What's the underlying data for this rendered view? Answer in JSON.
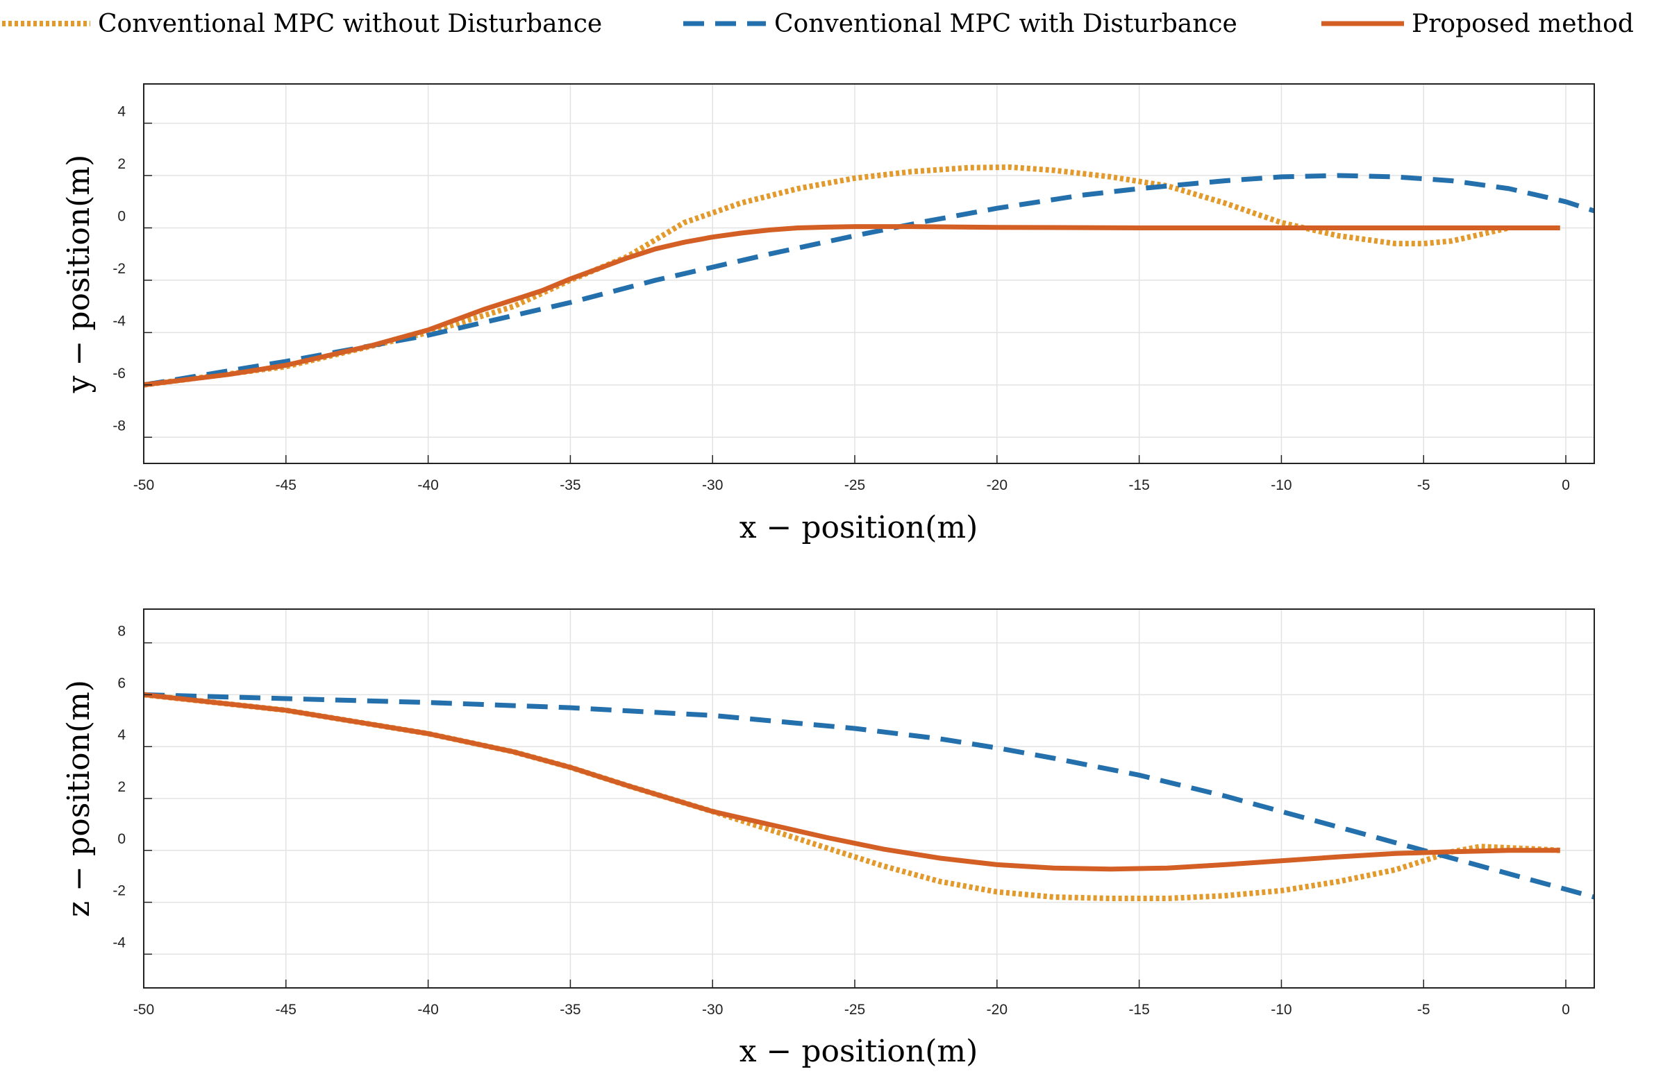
{
  "legend": {
    "entries": [
      {
        "label": "Conventional MPC without Disturbance",
        "color": "#E39A2D",
        "style": "dotted"
      },
      {
        "label": "Conventional MPC with Disturbance",
        "color": "#2370AD",
        "style": "dashed"
      },
      {
        "label": "Proposed method",
        "color": "#D35F25",
        "style": "solid"
      }
    ]
  },
  "chart_data": [
    {
      "type": "line",
      "xlabel": "x − position(m)",
      "ylabel": "y − position(m)",
      "xlim": [
        -50,
        1
      ],
      "ylim": [
        -9,
        5.5
      ],
      "xticks": [
        -50,
        -45,
        -40,
        -35,
        -30,
        -25,
        -20,
        -15,
        -10,
        -5,
        0
      ],
      "yticks": [
        -8,
        -6,
        -4,
        -2,
        0,
        2,
        4
      ],
      "grid": true,
      "series": [
        {
          "name": "Conventional MPC without Disturbance",
          "x": [
            -50,
            -45,
            -40,
            -37,
            -35,
            -33,
            -31,
            -29,
            -27,
            -25,
            -23,
            -21,
            -19.5,
            -18,
            -16,
            -14,
            -12,
            -10,
            -8,
            -6,
            -5,
            -4,
            -3,
            -2
          ],
          "y": [
            -6,
            -5.3,
            -4,
            -3,
            -2,
            -1.1,
            0.2,
            0.95,
            1.5,
            1.9,
            2.15,
            2.3,
            2.32,
            2.2,
            1.95,
            1.6,
            0.95,
            0.2,
            -0.3,
            -0.6,
            -0.6,
            -0.5,
            -0.25,
            0
          ]
        },
        {
          "name": "Conventional MPC with Disturbance",
          "x": [
            -50,
            -45,
            -42,
            -40,
            -38,
            -35,
            -32,
            -30,
            -28,
            -25,
            -22.5,
            -20,
            -17,
            -15,
            -12,
            -10,
            -8,
            -6,
            -4,
            -2,
            0,
            1
          ],
          "y": [
            -6,
            -5.1,
            -4.5,
            -4.1,
            -3.6,
            -2.85,
            -2,
            -1.5,
            -1,
            -0.3,
            0.25,
            0.75,
            1.25,
            1.5,
            1.8,
            1.95,
            2.0,
            1.95,
            1.8,
            1.5,
            1.0,
            0.65
          ]
        },
        {
          "name": "Proposed method",
          "x": [
            -50,
            -47,
            -45,
            -42,
            -40,
            -38,
            -36,
            -35,
            -34,
            -33,
            -32,
            -31,
            -30,
            -29,
            -28,
            -27,
            -26,
            -25,
            -23,
            -20,
            -15,
            -10,
            -5,
            -0.2
          ],
          "y": [
            -6,
            -5.6,
            -5.25,
            -4.5,
            -3.9,
            -3.1,
            -2.4,
            -1.95,
            -1.55,
            -1.15,
            -0.8,
            -0.55,
            -0.35,
            -0.2,
            -0.08,
            0,
            0.03,
            0.05,
            0.05,
            0.02,
            0,
            0,
            0,
            0
          ]
        }
      ]
    },
    {
      "type": "line",
      "xlabel": "x − position(m)",
      "ylabel": "z − position(m)",
      "xlim": [
        -50,
        1
      ],
      "ylim": [
        -5.3,
        9.3
      ],
      "xticks": [
        -50,
        -45,
        -40,
        -35,
        -30,
        -25,
        -20,
        -15,
        -10,
        -5,
        0
      ],
      "yticks": [
        -4,
        -2,
        0,
        2,
        4,
        6,
        8
      ],
      "grid": true,
      "series": [
        {
          "name": "Conventional MPC without Disturbance",
          "x": [
            -50,
            -45,
            -40,
            -37,
            -35,
            -33,
            -30,
            -28,
            -26,
            -24,
            -22,
            -20,
            -18,
            -16,
            -14,
            -12,
            -10,
            -8,
            -6,
            -5,
            -4,
            -3,
            -2,
            -1,
            -0.2
          ],
          "y": [
            6,
            5.4,
            4.5,
            3.8,
            3.2,
            2.5,
            1.5,
            0.8,
            0.1,
            -0.6,
            -1.2,
            -1.6,
            -1.8,
            -1.85,
            -1.85,
            -1.75,
            -1.55,
            -1.2,
            -0.75,
            -0.4,
            -0.05,
            0.15,
            0.1,
            0.05,
            0
          ]
        },
        {
          "name": "Conventional MPC with Disturbance",
          "x": [
            -50,
            -45,
            -40,
            -35,
            -30,
            -25,
            -22,
            -20,
            -18,
            -15,
            -12,
            -10,
            -8,
            -6,
            -4,
            -2,
            0,
            1
          ],
          "y": [
            6,
            5.85,
            5.7,
            5.5,
            5.2,
            4.7,
            4.3,
            3.95,
            3.55,
            2.9,
            2.1,
            1.5,
            0.9,
            0.3,
            -0.3,
            -0.9,
            -1.5,
            -1.8
          ]
        },
        {
          "name": "Proposed method",
          "x": [
            -50,
            -45,
            -40,
            -37,
            -35,
            -33,
            -30,
            -28,
            -26,
            -24,
            -22,
            -20,
            -18,
            -16,
            -14,
            -12,
            -10,
            -8,
            -6,
            -4,
            -2,
            -0.2
          ],
          "y": [
            6,
            5.4,
            4.5,
            3.8,
            3.2,
            2.5,
            1.5,
            1.0,
            0.5,
            0.05,
            -0.3,
            -0.55,
            -0.68,
            -0.72,
            -0.68,
            -0.55,
            -0.4,
            -0.25,
            -0.12,
            -0.05,
            0,
            0
          ]
        }
      ]
    }
  ]
}
